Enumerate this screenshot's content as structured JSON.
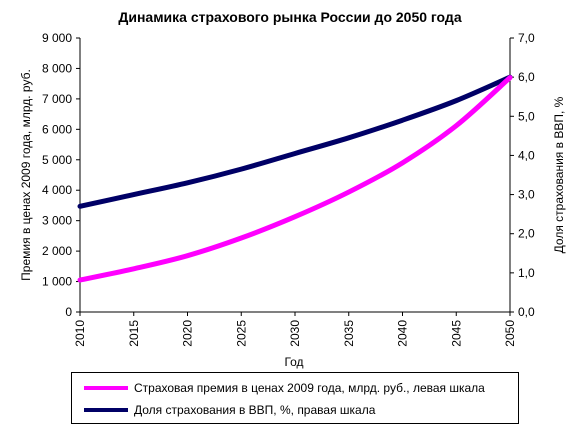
{
  "chart_data": {
    "type": "line",
    "title": "Динамика страхового рынка России до 2050 года",
    "xlabel": "Год",
    "ylabel_left": "Премия в ценах 2009 года, млрд. руб.",
    "ylabel_right": "Доля страхования в ВВП, %",
    "xlim": [
      2010,
      2050
    ],
    "ylim_left": [
      0,
      9000
    ],
    "ylim_right": [
      0,
      7
    ],
    "x_ticks": [
      "2010",
      "2015",
      "2020",
      "2025",
      "2030",
      "2035",
      "2040",
      "2045",
      "2050"
    ],
    "y_left_ticks": [
      "0",
      "1 000",
      "2 000",
      "3 000",
      "4 000",
      "5 000",
      "6 000",
      "7 000",
      "8 000",
      "9 000"
    ],
    "y_right_ticks": [
      "0,0",
      "1,0",
      "2,0",
      "3,0",
      "4,0",
      "5,0",
      "6,0",
      "7,0"
    ],
    "grid": false,
    "legend_position": "bottom",
    "series": [
      {
        "name": "Страховая премия в ценах 2009 года, млрд. руб., левая шкала",
        "axis": "left",
        "color": "#ff00ff",
        "x": [
          2010,
          2015,
          2020,
          2025,
          2030,
          2035,
          2040,
          2045,
          2050
        ],
        "values": [
          1050,
          1420,
          1850,
          2430,
          3130,
          3940,
          4900,
          6120,
          7700
        ]
      },
      {
        "name": "Доля страхования в ВВП, %, правая шкала",
        "axis": "right",
        "color": "#000066",
        "x": [
          2010,
          2015,
          2020,
          2025,
          2030,
          2035,
          2040,
          2045,
          2050
        ],
        "values": [
          2.7,
          3.0,
          3.3,
          3.65,
          4.05,
          4.45,
          4.9,
          5.4,
          6.0
        ]
      }
    ]
  }
}
